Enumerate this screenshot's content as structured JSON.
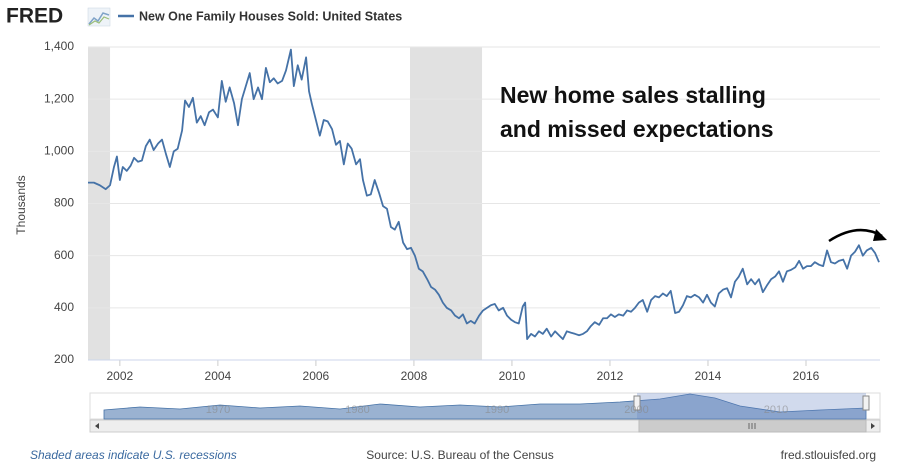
{
  "logo": "FRED",
  "footer": {
    "recession_note": "Shaded areas indicate U.S. recessions",
    "source": "Source: U.S. Bureau of the Census",
    "site": "fred.stlouisfed.org"
  },
  "chart_data": {
    "type": "line",
    "y_label": "Thousands",
    "annotation": [
      "New home sales stalling",
      "and missed expectations"
    ],
    "xlim": [
      2001.35,
      2017.51
    ],
    "xticks": [
      2002,
      2004,
      2006,
      2008,
      2010,
      2012,
      2014,
      2016
    ],
    "ylim": [
      200,
      1400
    ],
    "yticks": [
      200,
      400,
      600,
      800,
      {
        "value": 1000,
        "label": "1,000"
      },
      {
        "value": 1200,
        "label": "1,200"
      },
      {
        "value": 1400,
        "label": "1,400"
      }
    ],
    "grid": true,
    "recessions": [
      [
        2001.35,
        2001.8
      ],
      [
        2007.92,
        2009.39
      ]
    ],
    "navigator_ticks": [
      1970,
      1980,
      1990,
      2000,
      2010
    ],
    "x": [
      2001.35,
      2001.47,
      2001.59,
      2001.71,
      2001.8,
      2001.88,
      2001.94,
      2002.0,
      2002.06,
      2002.14,
      2002.22,
      2002.29,
      2002.37,
      2002.45,
      2002.53,
      2002.61,
      2002.69,
      2002.78,
      2002.86,
      2002.94,
      2003.02,
      2003.1,
      2003.18,
      2003.27,
      2003.33,
      2003.41,
      2003.49,
      2003.57,
      2003.65,
      2003.73,
      2003.82,
      2003.9,
      2004.0,
      2004.08,
      2004.16,
      2004.24,
      2004.33,
      2004.41,
      2004.49,
      2004.57,
      2004.65,
      2004.73,
      2004.82,
      2004.9,
      2004.98,
      2005.06,
      2005.14,
      2005.22,
      2005.31,
      2005.39,
      2005.49,
      2005.55,
      2005.63,
      2005.71,
      2005.8,
      2005.86,
      2005.92,
      2006.0,
      2006.08,
      2006.16,
      2006.24,
      2006.33,
      2006.41,
      2006.49,
      2006.57,
      2006.65,
      2006.73,
      2006.82,
      2006.9,
      2006.96,
      2007.04,
      2007.12,
      2007.2,
      2007.29,
      2007.37,
      2007.45,
      2007.53,
      2007.61,
      2007.69,
      2007.78,
      2007.86,
      2007.94,
      2008.02,
      2008.1,
      2008.18,
      2008.27,
      2008.35,
      2008.43,
      2008.51,
      2008.59,
      2008.67,
      2008.76,
      2008.84,
      2008.92,
      2009.0,
      2009.08,
      2009.16,
      2009.24,
      2009.33,
      2009.41,
      2009.49,
      2009.57,
      2009.65,
      2009.73,
      2009.82,
      2009.9,
      2009.98,
      2010.06,
      2010.14,
      2010.22,
      2010.27,
      2010.31,
      2010.39,
      2010.47,
      2010.55,
      2010.63,
      2010.71,
      2010.8,
      2010.88,
      2010.96,
      2011.04,
      2011.12,
      2011.2,
      2011.29,
      2011.37,
      2011.45,
      2011.53,
      2011.61,
      2011.69,
      2011.78,
      2011.86,
      2011.94,
      2012.02,
      2012.1,
      2012.18,
      2012.27,
      2012.35,
      2012.43,
      2012.51,
      2012.59,
      2012.67,
      2012.76,
      2012.84,
      2012.92,
      2013.0,
      2013.08,
      2013.16,
      2013.24,
      2013.33,
      2013.41,
      2013.49,
      2013.57,
      2013.65,
      2013.73,
      2013.82,
      2013.9,
      2013.98,
      2014.06,
      2014.14,
      2014.22,
      2014.31,
      2014.39,
      2014.47,
      2014.55,
      2014.63,
      2014.71,
      2014.8,
      2014.88,
      2014.96,
      2015.04,
      2015.12,
      2015.2,
      2015.29,
      2015.37,
      2015.45,
      2015.53,
      2015.61,
      2015.69,
      2015.78,
      2015.86,
      2015.94,
      2016.02,
      2016.1,
      2016.18,
      2016.27,
      2016.35,
      2016.43,
      2016.51,
      2016.59,
      2016.67,
      2016.76,
      2016.84,
      2016.92,
      2017.0,
      2017.08,
      2017.16,
      2017.24,
      2017.33,
      2017.41,
      2017.49
    ],
    "series": [
      {
        "name": "New One Family Houses Sold: United States",
        "color": "#4572a7",
        "values": [
          880,
          880,
          870,
          855,
          870,
          940,
          980,
          890,
          940,
          925,
          945,
          975,
          960,
          965,
          1020,
          1045,
          1005,
          1030,
          1045,
          990,
          940,
          1000,
          1010,
          1080,
          1195,
          1170,
          1205,
          1110,
          1135,
          1100,
          1150,
          1160,
          1130,
          1270,
          1190,
          1245,
          1185,
          1100,
          1200,
          1250,
          1300,
          1200,
          1245,
          1200,
          1320,
          1265,
          1280,
          1260,
          1270,
          1310,
          1390,
          1250,
          1330,
          1275,
          1360,
          1230,
          1180,
          1120,
          1060,
          1120,
          1115,
          1085,
          1025,
          1040,
          950,
          1030,
          1010,
          950,
          970,
          890,
          830,
          835,
          890,
          840,
          790,
          780,
          710,
          700,
          730,
          650,
          625,
          630,
          600,
          550,
          540,
          510,
          480,
          470,
          450,
          420,
          400,
          390,
          370,
          360,
          375,
          340,
          350,
          340,
          370,
          390,
          400,
          410,
          415,
          390,
          400,
          370,
          355,
          345,
          340,
          405,
          420,
          280,
          300,
          290,
          310,
          300,
          320,
          290,
          310,
          295,
          280,
          310,
          305,
          300,
          295,
          300,
          310,
          330,
          345,
          335,
          360,
          360,
          375,
          365,
          375,
          370,
          390,
          385,
          400,
          420,
          430,
          385,
          430,
          445,
          440,
          455,
          445,
          465,
          380,
          385,
          410,
          445,
          440,
          450,
          440,
          420,
          450,
          420,
          405,
          455,
          470,
          475,
          440,
          500,
          520,
          550,
          490,
          510,
          490,
          510,
          460,
          485,
          510,
          520,
          540,
          500,
          540,
          545,
          555,
          580,
          550,
          560,
          560,
          575,
          565,
          560,
          620,
          575,
          570,
          580,
          585,
          550,
          600,
          615,
          640,
          600,
          620,
          630,
          610,
          575
        ]
      }
    ]
  }
}
